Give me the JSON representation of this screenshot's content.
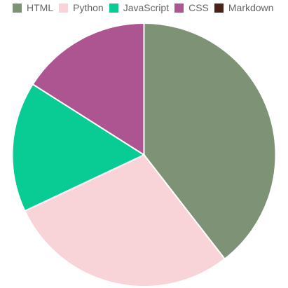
{
  "chart_data": {
    "type": "pie",
    "title": "",
    "categories": [
      "HTML",
      "Python",
      "JavaScript",
      "CSS",
      "Markdown"
    ],
    "values": [
      39.5,
      28.5,
      16.0,
      16.0,
      0.0
    ],
    "colors": [
      "#7e9276",
      "#f8d4d8",
      "#08cc93",
      "#ad5591",
      "#4a2219"
    ],
    "legend_position": "top",
    "start_angle_deg": -90,
    "direction": "clockwise"
  }
}
